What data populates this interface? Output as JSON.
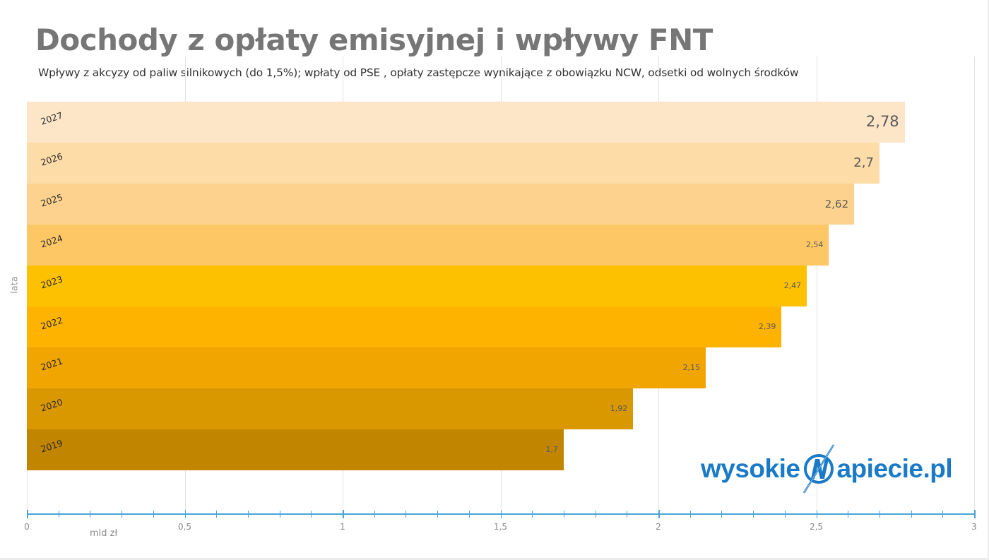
{
  "header": {
    "title": "Dochody z opłaty emisyjnej i wpływy FNT",
    "subtitle": "Wpływy z akcyzy od paliw silnikowych (do 1,5%); wpłaty od PSE , opłaty zastępcze wynikające z obowiązku NCW, odsetki od wolnych środków"
  },
  "axes": {
    "x_title": "mld zł",
    "y_title": "lata",
    "x_ticks": [
      "0",
      "0,5",
      "1",
      "1,5",
      "2",
      "2,5",
      "3"
    ]
  },
  "bars": [
    {
      "year": "2027",
      "value": 2.78,
      "label": "2,78",
      "color": "#fde6c8",
      "label_size": 21
    },
    {
      "year": "2026",
      "value": 2.7,
      "label": "2,7",
      "color": "#fddca8",
      "label_size": 18
    },
    {
      "year": "2025",
      "value": 2.62,
      "label": "2,62",
      "color": "#fdd28e",
      "label_size": 15
    },
    {
      "year": "2024",
      "value": 2.54,
      "label": "2,54",
      "color": "#fdc765",
      "label_size": 11
    },
    {
      "year": "2023",
      "value": 2.47,
      "label": "2,47",
      "color": "#fec101",
      "label_size": 11
    },
    {
      "year": "2022",
      "value": 2.39,
      "label": "2,39",
      "color": "#fdb300",
      "label_size": 11
    },
    {
      "year": "2021",
      "value": 2.15,
      "label": "2,15",
      "color": "#f0a500",
      "label_size": 11
    },
    {
      "year": "2020",
      "value": 1.92,
      "label": "1,92",
      "color": "#d99700",
      "label_size": 11
    },
    {
      "year": "2019",
      "value": 1.7,
      "label": "1,7",
      "color": "#c28500",
      "label_size": 11
    }
  ],
  "logo": {
    "left_text": "wysokie",
    "right_text": "apiecie.pl",
    "mark": "N-lightning-icon",
    "color": "#1a7ac8"
  },
  "chart_data": {
    "type": "bar",
    "orientation": "horizontal",
    "title": "Dochody z opłaty emisyjnej i wpływy FNT",
    "subtitle": "Wpływy z akcyzy od paliw silnikowych (do 1,5%); wpłaty od PSE , opłaty zastępcze wynikające z obowiązku NCW, odsetki od wolnych środków",
    "categories": [
      "2027",
      "2026",
      "2025",
      "2024",
      "2023",
      "2022",
      "2021",
      "2020",
      "2019"
    ],
    "values": [
      2.78,
      2.7,
      2.62,
      2.54,
      2.47,
      2.39,
      2.15,
      1.92,
      1.7
    ],
    "xlabel": "mld zł",
    "ylabel": "lata",
    "xlim": [
      0,
      3
    ],
    "x_ticks": [
      0,
      0.5,
      1,
      1.5,
      2,
      2.5,
      3
    ],
    "grid": true,
    "legend": "none",
    "data_labels": true
  }
}
